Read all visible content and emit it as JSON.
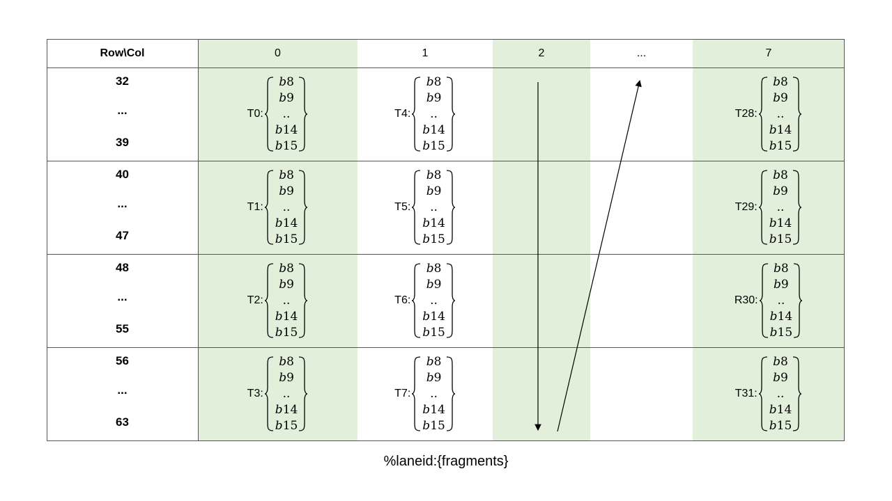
{
  "header": {
    "corner": "Row\\Col",
    "columns": [
      "0",
      "1",
      "2",
      "...",
      "7"
    ]
  },
  "row_groups": [
    {
      "start": "32",
      "dots": "...",
      "end": "39"
    },
    {
      "start": "40",
      "dots": "...",
      "end": "47"
    },
    {
      "start": "48",
      "dots": "...",
      "end": "55"
    },
    {
      "start": "56",
      "dots": "...",
      "end": "63"
    }
  ],
  "fragments": [
    "b8",
    "b9",
    "..",
    "b14",
    "b15"
  ],
  "cells": {
    "col0": [
      "T0:",
      "T1:",
      "T2:",
      "T3:"
    ],
    "col1": [
      "T4:",
      "T5:",
      "T6:",
      "T7:"
    ],
    "col7": [
      "T28:",
      "T29:",
      "R30:",
      "T31:"
    ]
  },
  "colors": {
    "highlight_column": "#e2efda",
    "border": "#555555"
  },
  "caption": "%laneid:{fragments}"
}
